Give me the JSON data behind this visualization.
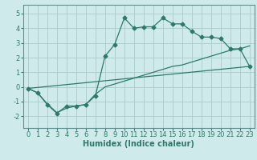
{
  "xlabel": "Humidex (Indice chaleur)",
  "background_color": "#ceeaea",
  "line_color": "#2d7a6a",
  "grid_color": "#aacccc",
  "xlim": [
    -0.5,
    23.5
  ],
  "ylim": [
    -2.8,
    5.6
  ],
  "xticks": [
    0,
    1,
    2,
    3,
    4,
    5,
    6,
    7,
    8,
    9,
    10,
    11,
    12,
    13,
    14,
    15,
    16,
    17,
    18,
    19,
    20,
    21,
    22,
    23
  ],
  "yticks": [
    -2,
    -1,
    0,
    1,
    2,
    3,
    4,
    5
  ],
  "line1_x": [
    0,
    1,
    2,
    3,
    4,
    5,
    6,
    7,
    8,
    9,
    10,
    11,
    12,
    13,
    14,
    15,
    16,
    17,
    18,
    19,
    20,
    21,
    22,
    23
  ],
  "line1_y": [
    -0.1,
    -0.4,
    -1.2,
    -1.8,
    -1.3,
    -1.3,
    -1.2,
    -0.6,
    2.1,
    2.9,
    4.7,
    4.0,
    4.1,
    4.1,
    4.7,
    4.3,
    4.3,
    3.8,
    3.4,
    3.4,
    3.3,
    2.6,
    2.6,
    1.4
  ],
  "line2_x": [
    0,
    1,
    2,
    3,
    4,
    5,
    6,
    7,
    8,
    9,
    10,
    11,
    12,
    13,
    14,
    15,
    16,
    17,
    18,
    19,
    20,
    21,
    22,
    23
  ],
  "line2_y": [
    -0.1,
    -0.4,
    -1.15,
    -1.75,
    -1.45,
    -1.3,
    -1.2,
    -0.5,
    0.0,
    0.2,
    0.4,
    0.6,
    0.8,
    1.0,
    1.2,
    1.4,
    1.5,
    1.7,
    1.9,
    2.1,
    2.3,
    2.5,
    2.6,
    2.8
  ],
  "line3_x": [
    0,
    23
  ],
  "line3_y": [
    -0.1,
    1.4
  ],
  "tick_fontsize": 6,
  "xlabel_fontsize": 7,
  "marker_size": 2.5
}
